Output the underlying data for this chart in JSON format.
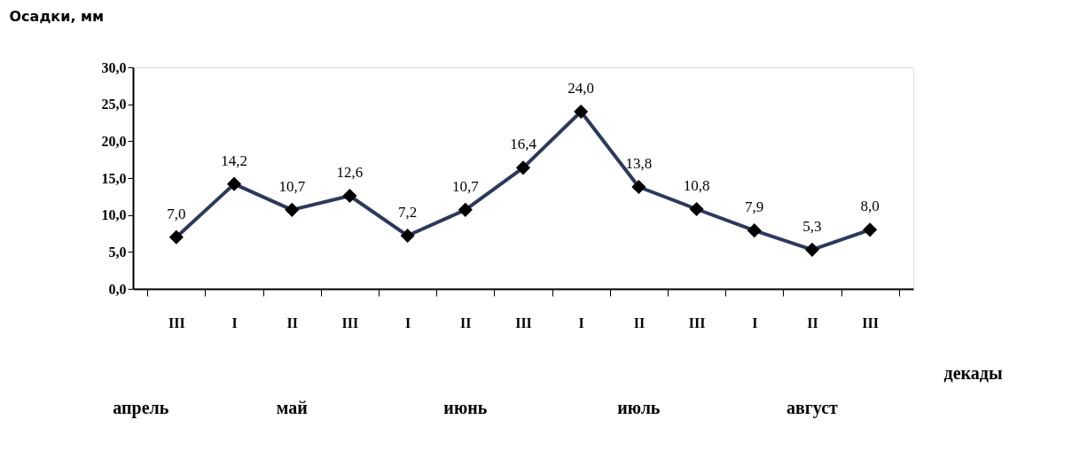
{
  "chart_data": {
    "type": "line",
    "xlabel": "декады",
    "ylabel": "Осадки, мм",
    "categories": [
      "III",
      "I",
      "II",
      "III",
      "I",
      "II",
      "III",
      "I",
      "II",
      "III",
      "I",
      "II",
      "III"
    ],
    "series": [
      {
        "color": "#2b3a5c",
        "values": [
          7.0,
          14.2,
          10.7,
          12.6,
          7.2,
          10.7,
          16.4,
          24.0,
          13.8,
          10.8,
          7.9,
          5.3,
          8.0
        ],
        "value_labels": [
          "7,0",
          "14,2",
          "10,7",
          "12,6",
          "7,2",
          "10,7",
          "16,4",
          "24,0",
          "13,8",
          "10,8",
          "7,9",
          "5,3",
          "8,0"
        ]
      }
    ],
    "ylim": [
      0,
      30
    ],
    "yticks": [
      {
        "value": 0,
        "label": "0,0"
      },
      {
        "value": 5,
        "label": "5,0"
      },
      {
        "value": 10,
        "label": "10,0"
      },
      {
        "value": 15,
        "label": "15,0"
      },
      {
        "value": 20,
        "label": "20,0"
      },
      {
        "value": 25,
        "label": "25,0"
      },
      {
        "value": 30,
        "label": "30,0"
      }
    ],
    "marker": "diamond",
    "line_style": "solid",
    "grid": false,
    "annotations": [
      "апрель",
      "май",
      "июнь",
      "июль",
      "август"
    ]
  }
}
